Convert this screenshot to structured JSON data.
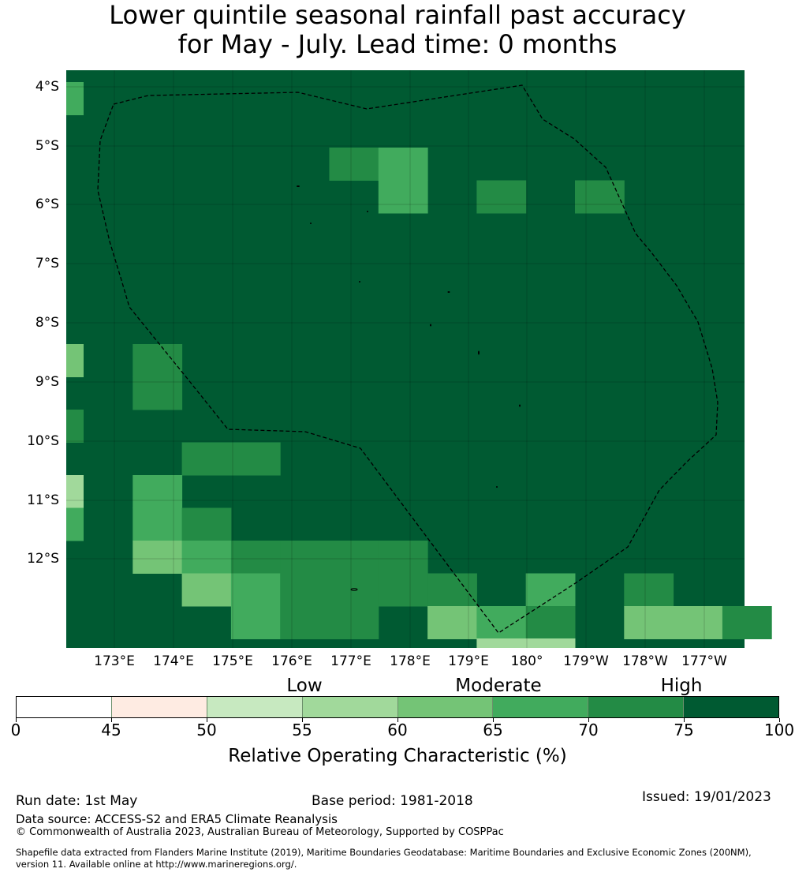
{
  "title": {
    "line1": "Lower quintile seasonal rainfall past accuracy",
    "line2": "for May - July. Lead time: 0 months"
  },
  "map": {
    "lat_labels": [
      "4°S",
      "5°S",
      "6°S",
      "7°S",
      "8°S",
      "9°S",
      "10°S",
      "11°S",
      "12°S"
    ],
    "lon_labels": [
      "173°E",
      "174°E",
      "175°E",
      "176°E",
      "177°E",
      "178°E",
      "179°E",
      "180°",
      "179°W",
      "178°W",
      "177°W"
    ],
    "background_color": "#005a32",
    "boundary_line": "dashed",
    "grid_columns": 14,
    "grid_rows": 18,
    "value_grid": [
      [
        75,
        75,
        75,
        75,
        75,
        75,
        75,
        75,
        75,
        75,
        75,
        75,
        75,
        75
      ],
      [
        75,
        75,
        75,
        75,
        75,
        75,
        75,
        75,
        75,
        75,
        75,
        75,
        75,
        75
      ],
      [
        75,
        75,
        75,
        75,
        75,
        75,
        75,
        75,
        75,
        75,
        75,
        75,
        75,
        75
      ],
      [
        75,
        75,
        75,
        75,
        75,
        70,
        65,
        75,
        75,
        75,
        75,
        75,
        75,
        75
      ],
      [
        75,
        75,
        75,
        75,
        75,
        75,
        65,
        75,
        70,
        75,
        70,
        75,
        75,
        75
      ],
      [
        75,
        75,
        75,
        75,
        75,
        75,
        75,
        75,
        75,
        75,
        75,
        75,
        75,
        75
      ],
      [
        75,
        75,
        75,
        75,
        75,
        75,
        75,
        75,
        75,
        75,
        75,
        75,
        75,
        75
      ],
      [
        75,
        75,
        75,
        75,
        75,
        75,
        75,
        75,
        75,
        75,
        75,
        75,
        75,
        75
      ],
      [
        75,
        75,
        75,
        75,
        75,
        75,
        75,
        75,
        75,
        75,
        75,
        75,
        75,
        75
      ],
      [
        75,
        70,
        75,
        75,
        75,
        75,
        75,
        75,
        75,
        75,
        75,
        75,
        75,
        75
      ],
      [
        75,
        70,
        75,
        75,
        75,
        75,
        75,
        75,
        75,
        75,
        75,
        75,
        75,
        75
      ],
      [
        75,
        75,
        75,
        75,
        75,
        75,
        75,
        75,
        75,
        75,
        75,
        75,
        75,
        75
      ],
      [
        75,
        75,
        70,
        70,
        75,
        75,
        75,
        75,
        75,
        75,
        75,
        75,
        75,
        75
      ],
      [
        75,
        65,
        75,
        75,
        75,
        75,
        75,
        75,
        75,
        75,
        75,
        75,
        75,
        75
      ],
      [
        75,
        65,
        70,
        75,
        75,
        75,
        75,
        75,
        75,
        75,
        75,
        75,
        75,
        75
      ],
      [
        75,
        60,
        65,
        70,
        70,
        70,
        70,
        75,
        75,
        75,
        75,
        75,
        75,
        75
      ],
      [
        75,
        75,
        60,
        65,
        70,
        70,
        70,
        70,
        75,
        65,
        75,
        70,
        75,
        75
      ],
      [
        75,
        75,
        75,
        65,
        70,
        70,
        75,
        60,
        65,
        70,
        75,
        60,
        60,
        70
      ]
    ],
    "left_strip": [
      {
        "row": 1,
        "value": 65
      },
      {
        "row": 9,
        "value": 60
      },
      {
        "row": 11,
        "value": 70
      },
      {
        "row": 13,
        "value": 55
      },
      {
        "row": 14,
        "value": 65
      }
    ],
    "bottom_partial_cells": [
      {
        "col": 8,
        "value": 55
      },
      {
        "col": 9,
        "value": 55
      }
    ]
  },
  "legend": {
    "category_labels": {
      "low": "Low",
      "moderate": "Moderate",
      "high": "High"
    },
    "ticks": [
      "0",
      "45",
      "50",
      "55",
      "60",
      "65",
      "70",
      "75",
      "100"
    ],
    "label": "Relative Operating Characteristic (%)",
    "segments": [
      {
        "from": 0,
        "to": 45,
        "color": "#ffffff"
      },
      {
        "from": 45,
        "to": 50,
        "color": "#feebe2"
      },
      {
        "from": 50,
        "to": 55,
        "color": "#c7e9c0"
      },
      {
        "from": 55,
        "to": 60,
        "color": "#a1d99b"
      },
      {
        "from": 60,
        "to": 65,
        "color": "#74c476"
      },
      {
        "from": 65,
        "to": 70,
        "color": "#41ab5d"
      },
      {
        "from": 70,
        "to": 75,
        "color": "#238b45"
      },
      {
        "from": 75,
        "to": 100,
        "color": "#005a32"
      }
    ]
  },
  "footer": {
    "run_date": "Run date: 1st May",
    "base_period": "Base period: 1981-2018",
    "issued": "Issued: 19/01/2023",
    "data_source": "Data source: ACCESS-S2 and ERA5 Climate Reanalysis",
    "copyright": "© Commonwealth of Australia 2023, Australian Bureau of Meteorology, Supported by COSPPac",
    "shapefile_line1": "Shapefile data extracted from Flanders Marine Institute (2019), Maritime Boundaries Geodatabase: Maritime Boundaries and Exclusive Economic Zones (200NM),",
    "shapefile_line2": "version 11. Available online at http://www.marineregions.org/."
  }
}
